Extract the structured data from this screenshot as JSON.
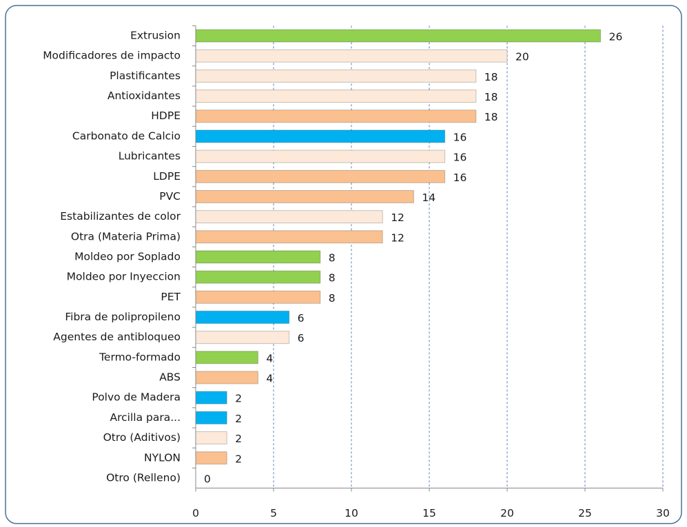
{
  "chart_data": {
    "type": "bar",
    "orientation": "horizontal",
    "categories": [
      "Extrusion",
      "Modificadores de impacto",
      "Plastificantes",
      "Antioxidantes",
      "HDPE",
      "Carbonato de Calcio",
      "Lubricantes",
      "LDPE",
      "PVC",
      "Estabilizantes de color",
      "Otra (Materia Prima)",
      "Moldeo por Soplado",
      "Moldeo por Inyeccion",
      "PET",
      "Fibra de polipropileno",
      "Agentes de antibloqueo",
      "Termo-formado",
      "ABS",
      "Polvo de Madera",
      "Arcilla para...",
      "Otro (Aditivos)",
      "NYLON",
      "Otro (Relleno)"
    ],
    "values": [
      26,
      20,
      18,
      18,
      18,
      16,
      16,
      16,
      14,
      12,
      12,
      8,
      8,
      8,
      6,
      6,
      4,
      4,
      2,
      2,
      2,
      2,
      0
    ],
    "colors": [
      "#92d050",
      "#fde9d9",
      "#fde9d9",
      "#fde9d9",
      "#fac090",
      "#00b0f0",
      "#fde9d9",
      "#fac090",
      "#fac090",
      "#fde9d9",
      "#fac090",
      "#92d050",
      "#92d050",
      "#fac090",
      "#00b0f0",
      "#fde9d9",
      "#92d050",
      "#fac090",
      "#00b0f0",
      "#00b0f0",
      "#fde9d9",
      "#fac090",
      "#fde9d9"
    ],
    "xlim": [
      0,
      30
    ],
    "xticks": [
      0,
      5,
      10,
      15,
      20,
      25,
      30
    ],
    "grid": true
  }
}
